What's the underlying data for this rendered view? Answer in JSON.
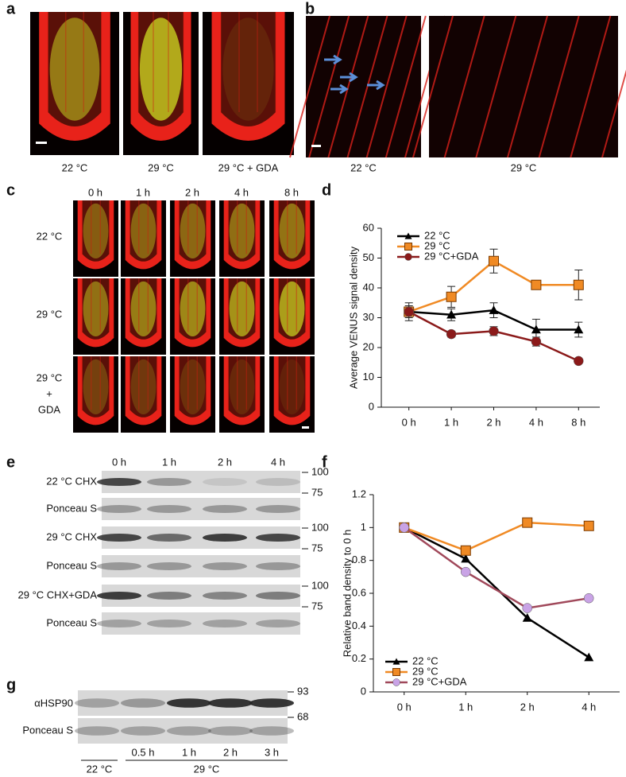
{
  "panel_labels": [
    "a",
    "b",
    "c",
    "d",
    "e",
    "f",
    "g"
  ],
  "panel_a": {
    "captions": [
      "22 °C",
      "29 °C",
      "29 °C + GDA"
    ]
  },
  "panel_b": {
    "captions": [
      "22 °C",
      "29 °C"
    ]
  },
  "panel_c": {
    "columns": [
      "0 h",
      "1 h",
      "2 h",
      "4 h",
      "8 h"
    ],
    "rows": [
      [
        "22 °C"
      ],
      [
        "29 °C"
      ],
      [
        "29 °C",
        "+",
        "GDA"
      ]
    ]
  },
  "panel_e": {
    "columns": [
      "0 h",
      "1 h",
      "2 h",
      "4 h"
    ],
    "rows": [
      "22 °C CHX",
      "Ponceau S",
      "29 °C CHX",
      "Ponceau S",
      "29 °C CHX+GDA",
      "Ponceau S"
    ],
    "markers": [
      [
        "100",
        "75"
      ],
      [
        "100",
        "75"
      ],
      [
        "100",
        "75"
      ]
    ]
  },
  "panel_g": {
    "rows": [
      "αHSP90",
      "Ponceau S"
    ],
    "markers": [
      "93",
      "68"
    ],
    "lanes": [
      "0.5 h",
      "1 h",
      "2 h",
      "3 h"
    ],
    "groups": [
      "22 °C",
      "29 °C"
    ]
  },
  "chart_data": [
    {
      "type": "line",
      "ylabel": "Average VENUS signal density",
      "categories": [
        "0 h",
        "1 h",
        "2 h",
        "4 h",
        "8 h"
      ],
      "series": [
        {
          "name": "22 °C",
          "color": "#000000",
          "marker": "triangle",
          "marker_color": "#000000",
          "values": [
            32,
            31,
            32.5,
            26,
            26
          ],
          "errors": [
            2,
            2,
            2.5,
            3.5,
            2.5
          ]
        },
        {
          "name": "29 °C",
          "color": "#f08a24",
          "marker": "square",
          "marker_color": "#f08a24",
          "values": [
            32,
            37,
            49,
            41,
            41
          ],
          "errors": [
            1,
            3.5,
            4,
            1.5,
            5
          ]
        },
        {
          "name": "29 °C+GDA",
          "color": "#8b1a1a",
          "marker": "circle",
          "marker_color": "#8b1a1a",
          "values": [
            32,
            24.5,
            25.5,
            22,
            15.5
          ],
          "errors": [
            3,
            1,
            1.5,
            1.5,
            0.5
          ]
        }
      ],
      "ylim": [
        0,
        60
      ],
      "yticks": [
        0,
        10,
        20,
        30,
        40,
        50,
        60
      ],
      "legend": "upper left"
    },
    {
      "type": "line",
      "ylabel": "Relative band density to 0 h",
      "categories": [
        "0 h",
        "1 h",
        "2 h",
        "4 h"
      ],
      "series": [
        {
          "name": "22 °C",
          "color": "#000000",
          "marker": "triangle",
          "marker_color": "#000000",
          "values": [
            1,
            0.81,
            0.45,
            0.21
          ]
        },
        {
          "name": "29 °C",
          "color": "#f08a24",
          "marker": "square",
          "marker_color": "#f08a24",
          "values": [
            1,
            0.86,
            1.03,
            1.01
          ]
        },
        {
          "name": "29 °C+GDA",
          "color": "#a0485a",
          "marker": "circle",
          "marker_color": "#c9a3e6",
          "values": [
            1,
            0.73,
            0.51,
            0.57
          ]
        }
      ],
      "ylim": [
        0,
        1.2
      ],
      "yticks": [
        0,
        0.2,
        0.4,
        0.6,
        0.8,
        1,
        1.2
      ],
      "legend": "lower left"
    }
  ]
}
